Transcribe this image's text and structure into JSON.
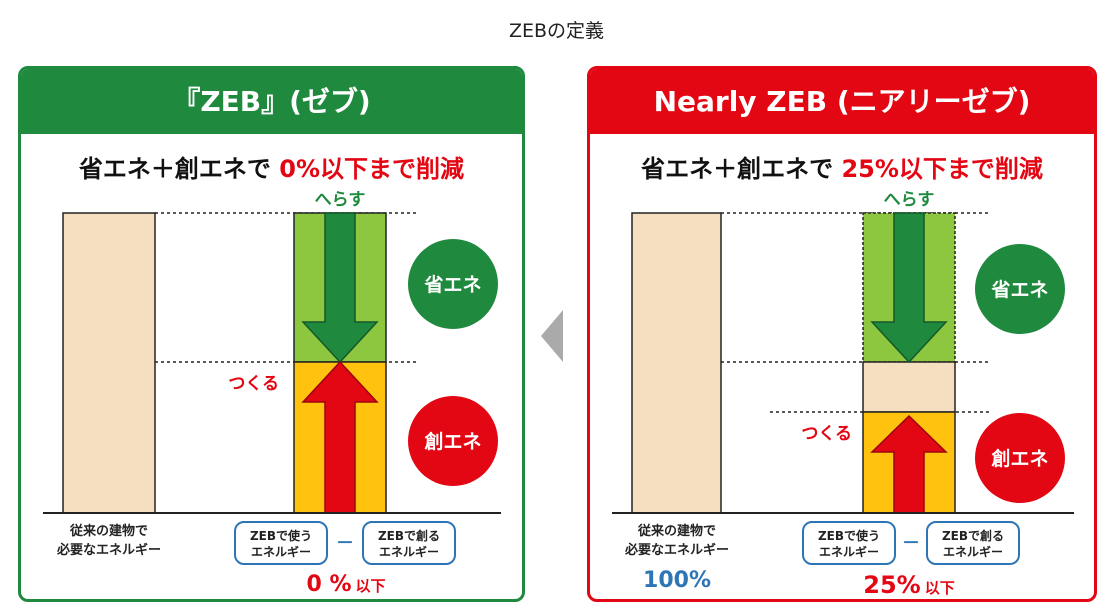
{
  "page_title": "ZEBの定義",
  "left": {
    "header": "『ZEB』(ゼブ)",
    "subtitle_prefix": "省エネ＋創エネで ",
    "subtitle_highlight": "0%以下まで削減",
    "reduce_label": "へらす",
    "create_label": "つくる",
    "circle_save": "省エネ",
    "circle_create": "創エネ",
    "baseline_label_1": "従来の建物で",
    "baseline_label_2": "必要なエネルギー",
    "box_use_1": "ZEBで使う",
    "box_use_2": "エネルギー",
    "box_make_1": "ZEBで創る",
    "box_make_2": "エネルギー",
    "minus": "－",
    "result_value": "0 %",
    "result_suffix": "以下"
  },
  "right": {
    "header": "Nearly ZEB (ニアリーゼブ)",
    "subtitle_prefix": "省エネ＋創エネで ",
    "subtitle_highlight": "25%以下まで削減",
    "reduce_label": "へらす",
    "create_label": "つくる",
    "circle_save": "省エネ",
    "circle_create": "創エネ",
    "baseline_label_1": "従来の建物で",
    "baseline_label_2": "必要なエネルギー",
    "baseline_value": "100%",
    "box_use_1": "ZEBで使う",
    "box_use_2": "エネルギー",
    "box_make_1": "ZEBで創る",
    "box_make_2": "エネルギー",
    "minus": "－",
    "result_value": "25%",
    "result_suffix": "以下"
  },
  "colors": {
    "green": "#1f8a3e",
    "red": "#e30613",
    "light_green": "#8dc63f",
    "yellow": "#ffc20e",
    "beige": "#f5dfc0",
    "blue": "#2e75b6"
  }
}
